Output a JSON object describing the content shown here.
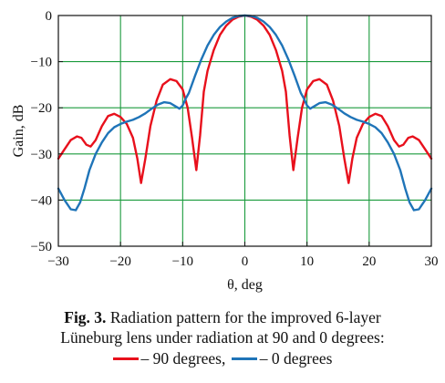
{
  "chart_data": {
    "type": "line",
    "xlabel": "θ, deg",
    "ylabel": "Gain, dB",
    "xlim": [
      -30,
      30
    ],
    "ylim": [
      -50,
      0
    ],
    "xticks": [
      -30,
      -20,
      -10,
      0,
      10,
      20,
      30
    ],
    "yticks": [
      0,
      -10,
      -20,
      -30,
      -40,
      -50
    ],
    "grid": true,
    "grid_color": "#1a9a3c",
    "series": [
      {
        "name": "90 degrees",
        "color": "#e8101c",
        "points": [
          [
            -30,
            -31
          ],
          [
            -29,
            -29
          ],
          [
            -28,
            -27
          ],
          [
            -27,
            -26.2
          ],
          [
            -26.3,
            -26.5
          ],
          [
            -25.5,
            -28
          ],
          [
            -24.8,
            -28.4
          ],
          [
            -24,
            -27
          ],
          [
            -23,
            -24
          ],
          [
            -22,
            -21.8
          ],
          [
            -21,
            -21.3
          ],
          [
            -20,
            -22
          ],
          [
            -19,
            -23.5
          ],
          [
            -18,
            -26.5
          ],
          [
            -17.3,
            -31
          ],
          [
            -16.7,
            -36.3
          ],
          [
            -16,
            -31
          ],
          [
            -15.2,
            -24
          ],
          [
            -14.2,
            -18.5
          ],
          [
            -13.2,
            -15
          ],
          [
            -12,
            -13.8
          ],
          [
            -11,
            -14.2
          ],
          [
            -10,
            -16
          ],
          [
            -9.2,
            -20
          ],
          [
            -8.5,
            -26.5
          ],
          [
            -7.8,
            -33.5
          ],
          [
            -7.2,
            -26
          ],
          [
            -6.6,
            -16.5
          ],
          [
            -6,
            -12
          ],
          [
            -5,
            -7.5
          ],
          [
            -4,
            -4.2
          ],
          [
            -3,
            -2.2
          ],
          [
            -2,
            -0.9
          ],
          [
            -1,
            -0.25
          ],
          [
            0,
            0
          ],
          [
            1,
            -0.25
          ],
          [
            2,
            -0.9
          ],
          [
            3,
            -2.2
          ],
          [
            4,
            -4.2
          ],
          [
            5,
            -7.5
          ],
          [
            6,
            -12
          ],
          [
            6.6,
            -16.5
          ],
          [
            7.2,
            -26
          ],
          [
            7.8,
            -33.5
          ],
          [
            8.5,
            -26.5
          ],
          [
            9.2,
            -20
          ],
          [
            10,
            -16
          ],
          [
            11,
            -14.2
          ],
          [
            12,
            -13.8
          ],
          [
            13.2,
            -15
          ],
          [
            14.2,
            -18.5
          ],
          [
            15.2,
            -24
          ],
          [
            16,
            -31
          ],
          [
            16.7,
            -36.3
          ],
          [
            17.3,
            -31
          ],
          [
            18,
            -26.5
          ],
          [
            19,
            -23.5
          ],
          [
            20,
            -22
          ],
          [
            21,
            -21.3
          ],
          [
            22,
            -21.8
          ],
          [
            23,
            -24
          ],
          [
            24,
            -27
          ],
          [
            24.8,
            -28.4
          ],
          [
            25.5,
            -28
          ],
          [
            26.3,
            -26.5
          ],
          [
            27,
            -26.2
          ],
          [
            28,
            -27
          ],
          [
            29,
            -29
          ],
          [
            30,
            -31
          ]
        ]
      },
      {
        "name": "0 degrees",
        "color": "#1f74b8",
        "points": [
          [
            -30,
            -37.5
          ],
          [
            -29,
            -40
          ],
          [
            -28,
            -42
          ],
          [
            -27.2,
            -42.2
          ],
          [
            -26.5,
            -40.5
          ],
          [
            -25.8,
            -37.5
          ],
          [
            -25,
            -33.5
          ],
          [
            -24,
            -30
          ],
          [
            -23,
            -27.5
          ],
          [
            -22,
            -25.5
          ],
          [
            -21,
            -24.2
          ],
          [
            -20,
            -23.5
          ],
          [
            -19,
            -23
          ],
          [
            -18,
            -22.6
          ],
          [
            -17,
            -22
          ],
          [
            -16,
            -21.2
          ],
          [
            -15,
            -20.2
          ],
          [
            -14,
            -19.3
          ],
          [
            -13,
            -18.8
          ],
          [
            -12,
            -19
          ],
          [
            -11,
            -19.8
          ],
          [
            -10.5,
            -20.2
          ],
          [
            -10,
            -19.5
          ],
          [
            -9.5,
            -18
          ],
          [
            -9,
            -16.8
          ],
          [
            -8,
            -13
          ],
          [
            -7,
            -9.5
          ],
          [
            -6,
            -6.5
          ],
          [
            -5,
            -4.2
          ],
          [
            -4,
            -2.5
          ],
          [
            -3,
            -1.3
          ],
          [
            -2,
            -0.5
          ],
          [
            -1,
            -0.1
          ],
          [
            0,
            0
          ],
          [
            1,
            -0.1
          ],
          [
            2,
            -0.5
          ],
          [
            3,
            -1.3
          ],
          [
            4,
            -2.5
          ],
          [
            5,
            -4.2
          ],
          [
            6,
            -6.5
          ],
          [
            7,
            -9.5
          ],
          [
            8,
            -13
          ],
          [
            9,
            -16.8
          ],
          [
            9.5,
            -18
          ],
          [
            10,
            -19.5
          ],
          [
            10.5,
            -20.2
          ],
          [
            11,
            -19.8
          ],
          [
            12,
            -19
          ],
          [
            13,
            -18.8
          ],
          [
            14,
            -19.3
          ],
          [
            15,
            -20.2
          ],
          [
            16,
            -21.2
          ],
          [
            17,
            -22
          ],
          [
            18,
            -22.6
          ],
          [
            19,
            -23
          ],
          [
            20,
            -23.5
          ],
          [
            21,
            -24.2
          ],
          [
            22,
            -25.5
          ],
          [
            23,
            -27.5
          ],
          [
            24,
            -30
          ],
          [
            25,
            -33.5
          ],
          [
            25.8,
            -37.5
          ],
          [
            26.5,
            -40.5
          ],
          [
            27.2,
            -42.2
          ],
          [
            28,
            -42
          ],
          [
            29,
            -40
          ],
          [
            30,
            -37.5
          ]
        ]
      }
    ]
  },
  "caption": {
    "bold": "Fig. 3.",
    "text1": " Radiation pattern for the improved 6-layer",
    "line2": "Lüneburg lens under radiation at 90 and 0 degrees:"
  },
  "legend": {
    "item1": "– 90 degrees,",
    "item2": "– 0 degrees"
  }
}
